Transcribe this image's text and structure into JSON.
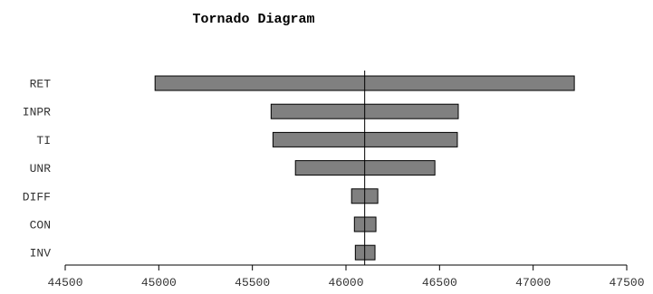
{
  "chart_data": {
    "type": "bar",
    "orientation": "horizontal",
    "title": "Tornado Diagram",
    "xlabel": "",
    "ylabel": "",
    "base_value": 46100,
    "xlim": [
      44500,
      47500
    ],
    "x_ticks": [
      44500,
      45000,
      45500,
      46000,
      46500,
      47000,
      47500
    ],
    "grid": false,
    "categories": [
      "RET",
      "INPR",
      "TI",
      "UNR",
      "DIFF",
      "CON",
      "INV"
    ],
    "low": [
      44980,
      45600,
      45610,
      45730,
      46030,
      46045,
      46050
    ],
    "high": [
      47220,
      46600,
      46595,
      46475,
      46170,
      46160,
      46155
    ],
    "bar_color": "#808080"
  }
}
